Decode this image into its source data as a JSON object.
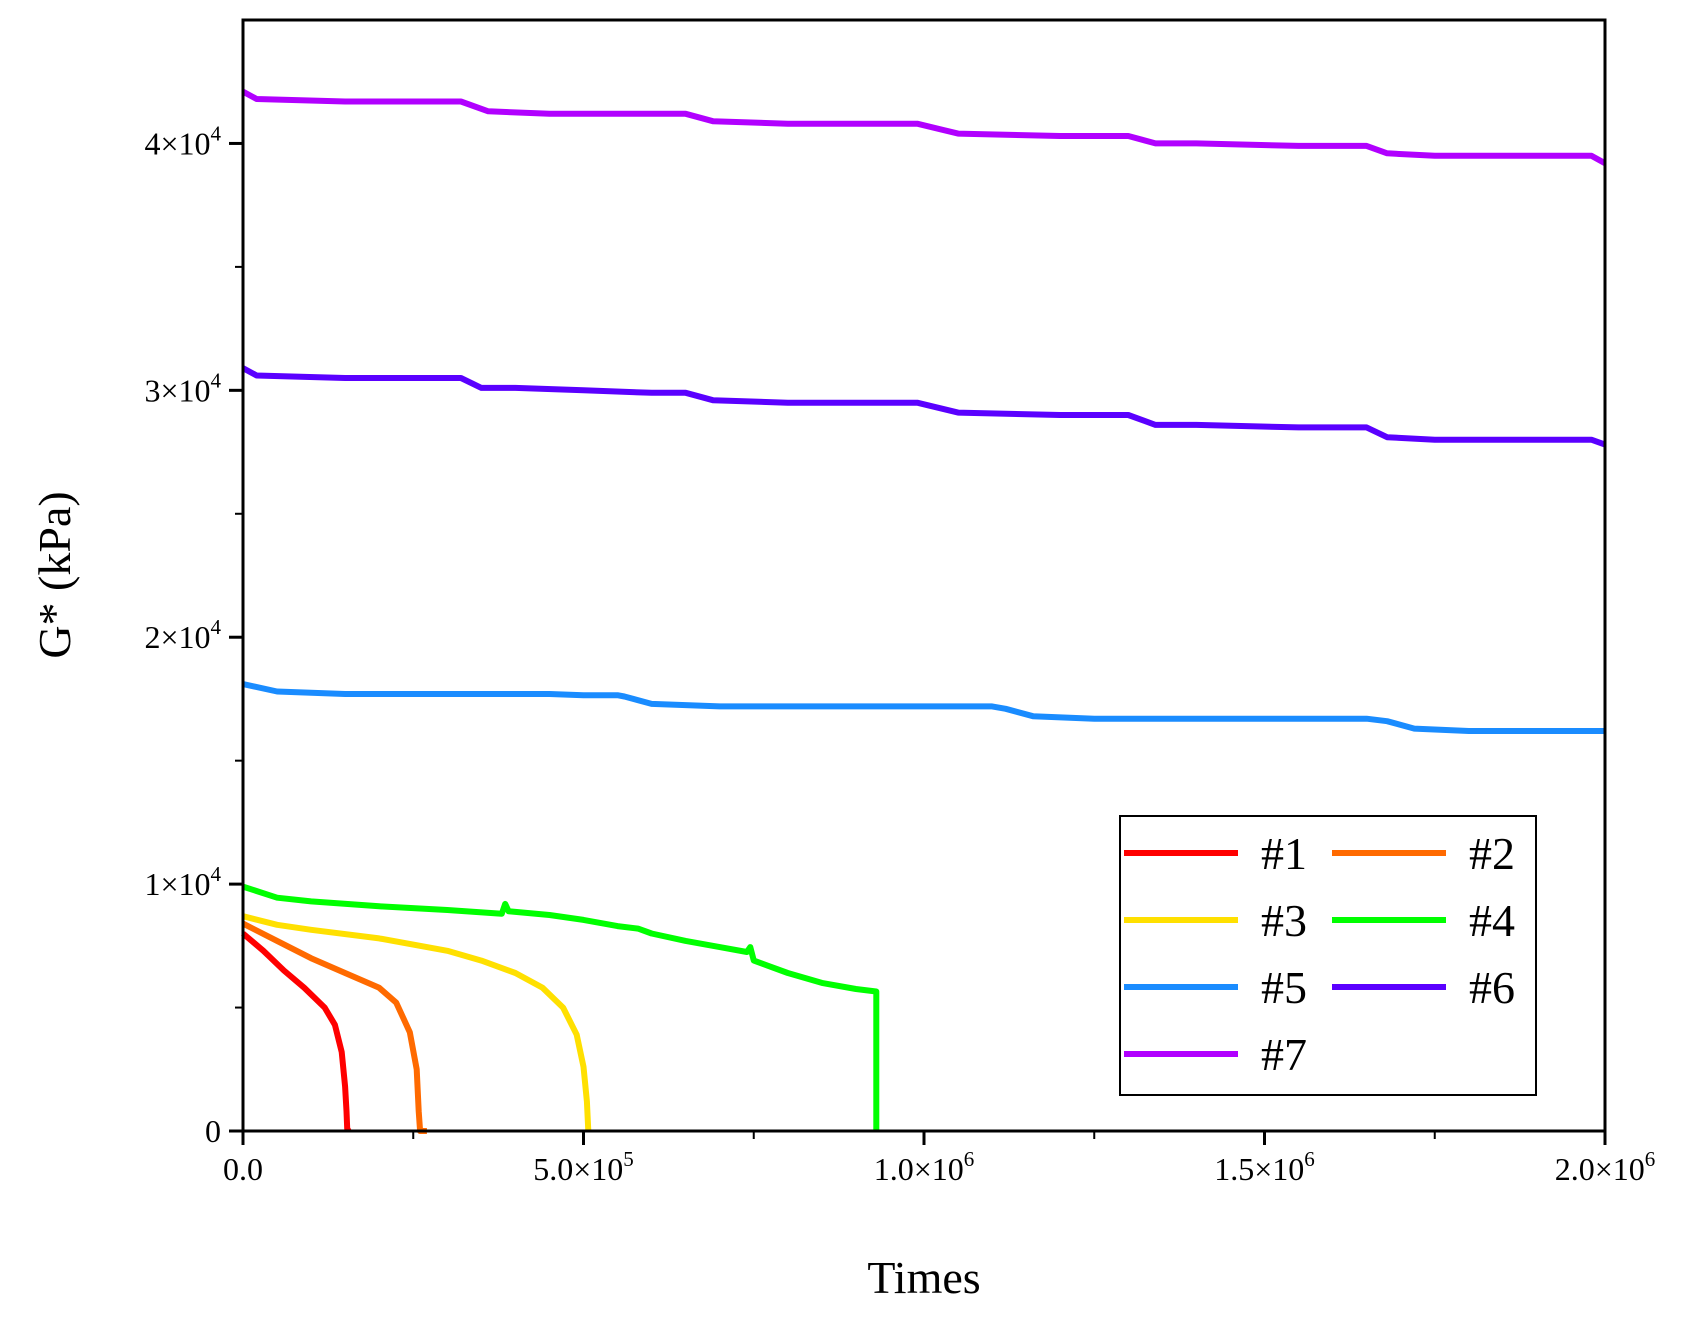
{
  "chart_data": {
    "type": "line",
    "title": "",
    "xlabel": "Times",
    "ylabel": "G* (kPa)",
    "xlim": [
      0,
      2000000
    ],
    "ylim": [
      0,
      45000
    ],
    "x_ticks": [
      {
        "value": 0,
        "mantissa": "0.0",
        "exp": ""
      },
      {
        "value": 500000,
        "mantissa": "5.0×10",
        "exp": "5"
      },
      {
        "value": 1000000,
        "mantissa": "1.0×10",
        "exp": "6"
      },
      {
        "value": 1500000,
        "mantissa": "1.5×10",
        "exp": "6"
      },
      {
        "value": 2000000,
        "mantissa": "2.0×10",
        "exp": "6"
      }
    ],
    "y_ticks": [
      {
        "value": 0,
        "mantissa": "0",
        "exp": ""
      },
      {
        "value": 10000,
        "mantissa": "1×10",
        "exp": "4"
      },
      {
        "value": 20000,
        "mantissa": "2×10",
        "exp": "4"
      },
      {
        "value": 30000,
        "mantissa": "3×10",
        "exp": "4"
      },
      {
        "value": 40000,
        "mantissa": "4×10",
        "exp": "4"
      }
    ],
    "legend_position": "bottom-right",
    "series": [
      {
        "name": "#1",
        "color": "#ff0000",
        "x": [
          0,
          30000,
          60000,
          90000,
          120000,
          135000,
          145000,
          150000,
          152000,
          153000,
          155000
        ],
        "y": [
          8000,
          7300,
          6500,
          5800,
          5000,
          4300,
          3200,
          1800,
          800,
          100,
          0
        ]
      },
      {
        "name": "#2",
        "color": "#ff6a00",
        "x": [
          0,
          50000,
          100000,
          150000,
          200000,
          225000,
          245000,
          255000,
          258000,
          260000,
          270000
        ],
        "y": [
          8400,
          7700,
          7000,
          6400,
          5800,
          5200,
          4000,
          2500,
          800,
          0,
          0
        ]
      },
      {
        "name": "#3",
        "color": "#ffe000",
        "x": [
          0,
          50000,
          100000,
          200000,
          300000,
          350000,
          400000,
          440000,
          470000,
          490000,
          500000,
          505000,
          507000
        ],
        "y": [
          8700,
          8350,
          8150,
          7800,
          7300,
          6900,
          6400,
          5800,
          5000,
          3900,
          2600,
          1200,
          0
        ]
      },
      {
        "name": "#4",
        "color": "#00ff00",
        "x": [
          0,
          50000,
          100000,
          200000,
          300000,
          380000,
          385000,
          390000,
          450000,
          500000,
          550000,
          580000,
          600000,
          650000,
          700000,
          740000,
          745000,
          750000,
          770000,
          800000,
          850000,
          900000,
          930000,
          930000
        ],
        "y": [
          9900,
          9450,
          9300,
          9100,
          8950,
          8800,
          9200,
          8900,
          8750,
          8550,
          8300,
          8200,
          8000,
          7700,
          7450,
          7250,
          7450,
          6900,
          6700,
          6400,
          6000,
          5750,
          5650,
          0
        ]
      },
      {
        "name": "#5",
        "color": "#1a8cff",
        "x": [
          0,
          50000,
          150000,
          250000,
          350000,
          450000,
          500000,
          550000,
          560000,
          600000,
          700000,
          800000,
          900000,
          1000000,
          1100000,
          1120000,
          1160000,
          1250000,
          1350000,
          1450000,
          1550000,
          1650000,
          1680000,
          1720000,
          1800000,
          1900000,
          2000000
        ],
        "y": [
          18100,
          17800,
          17700,
          17700,
          17700,
          17700,
          17650,
          17650,
          17600,
          17300,
          17200,
          17200,
          17200,
          17200,
          17200,
          17100,
          16800,
          16700,
          16700,
          16700,
          16700,
          16700,
          16600,
          16300,
          16200,
          16200,
          16200
        ]
      },
      {
        "name": "#6",
        "color": "#5a00ff",
        "x": [
          0,
          20000,
          150000,
          250000,
          320000,
          350000,
          400000,
          500000,
          600000,
          650000,
          690000,
          800000,
          950000,
          990000,
          1050000,
          1200000,
          1300000,
          1340000,
          1400000,
          1550000,
          1650000,
          1680000,
          1750000,
          1900000,
          1980000,
          2000000
        ],
        "y": [
          30900,
          30600,
          30500,
          30500,
          30500,
          30100,
          30100,
          30000,
          29900,
          29900,
          29600,
          29500,
          29500,
          29500,
          29100,
          29000,
          29000,
          28600,
          28600,
          28500,
          28500,
          28100,
          28000,
          28000,
          28000,
          27800
        ]
      },
      {
        "name": "#7",
        "color": "#b100ff",
        "x": [
          0,
          20000,
          150000,
          250000,
          320000,
          360000,
          450000,
          550000,
          650000,
          690000,
          800000,
          950000,
          990000,
          1050000,
          1200000,
          1300000,
          1340000,
          1400000,
          1550000,
          1650000,
          1680000,
          1750000,
          1900000,
          1980000,
          2000000
        ],
        "y": [
          42100,
          41800,
          41700,
          41700,
          41700,
          41300,
          41200,
          41200,
          41200,
          40900,
          40800,
          40800,
          40800,
          40400,
          40300,
          40300,
          40000,
          40000,
          39900,
          39900,
          39600,
          39500,
          39500,
          39500,
          39200
        ]
      }
    ]
  }
}
